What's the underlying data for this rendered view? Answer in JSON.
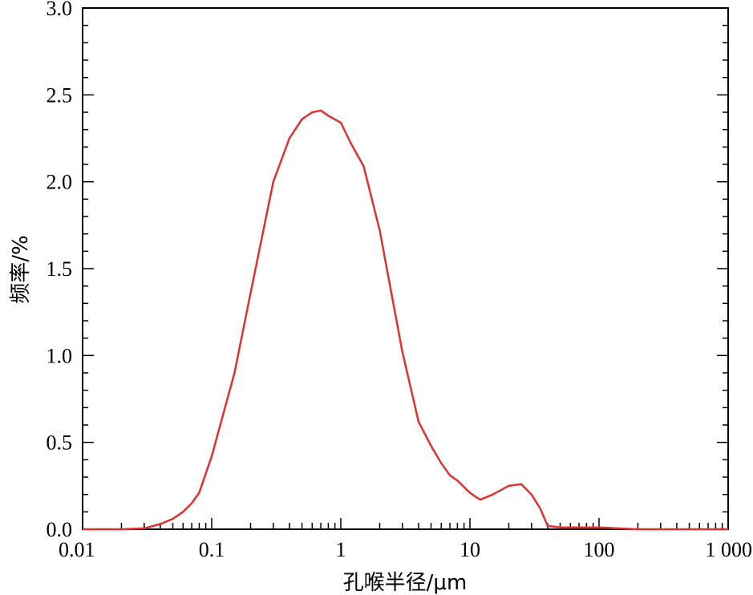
{
  "chart_data": {
    "type": "line",
    "title": "",
    "xlabel": "孔喉半径/μm",
    "ylabel": "频率/%",
    "x_scale": "log",
    "xlim": [
      0.01,
      1000
    ],
    "ylim": [
      0,
      3.0
    ],
    "x_ticks": [
      0.01,
      0.1,
      1,
      10,
      100,
      1000
    ],
    "x_tick_labels": [
      "0.01",
      "0.1",
      "1",
      "10",
      "100",
      "1 000"
    ],
    "y_ticks": [
      0,
      0.5,
      1.0,
      1.5,
      2.0,
      2.5,
      3.0
    ],
    "y_tick_labels": [
      "0.0",
      "0.5",
      "1.0",
      "1.5",
      "2.0",
      "2.5",
      "3.0"
    ],
    "grid": false,
    "legend": "none",
    "series": [
      {
        "color": "#e03030",
        "x": [
          0.01,
          0.02,
          0.03,
          0.04,
          0.05,
          0.06,
          0.07,
          0.08,
          0.1,
          0.15,
          0.2,
          0.3,
          0.4,
          0.5,
          0.6,
          0.7,
          0.8,
          1.0,
          1.2,
          1.5,
          2.0,
          3.0,
          4.0,
          5.0,
          6.0,
          7.0,
          8.0,
          10,
          12,
          15,
          20,
          25,
          30,
          35,
          40,
          50,
          100,
          200,
          500,
          1000
        ],
        "y": [
          0.0,
          0.0,
          0.005,
          0.03,
          0.06,
          0.1,
          0.15,
          0.21,
          0.42,
          0.9,
          1.36,
          2.0,
          2.25,
          2.36,
          2.4,
          2.41,
          2.38,
          2.34,
          2.22,
          2.09,
          1.72,
          1.02,
          0.62,
          0.48,
          0.38,
          0.31,
          0.28,
          0.21,
          0.17,
          0.2,
          0.25,
          0.26,
          0.2,
          0.12,
          0.02,
          0.01,
          0.01,
          0.0,
          0.0,
          0.0
        ]
      }
    ]
  }
}
